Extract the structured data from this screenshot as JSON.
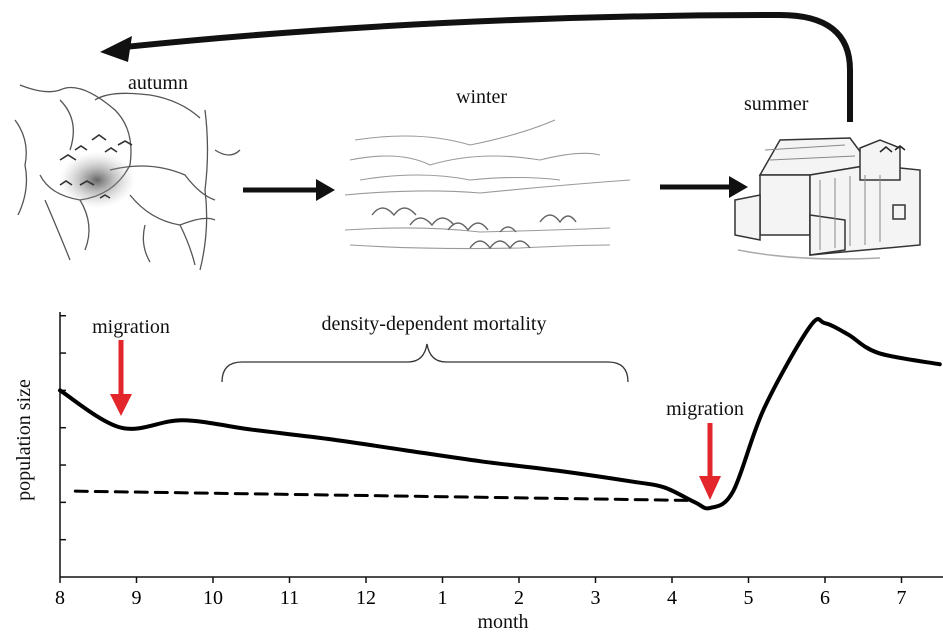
{
  "seasons": {
    "autumn": "autumn",
    "winter": "winter",
    "summer": "summer"
  },
  "annotations": {
    "migration_1": "migration",
    "migration_2": "migration",
    "density": "density-dependent mortality"
  },
  "chart_data": {
    "type": "line",
    "xlabel": "month",
    "ylabel": "population size",
    "x_ticks": [
      "8",
      "9",
      "10",
      "11",
      "12",
      "1",
      "2",
      "3",
      "4",
      "5",
      "6",
      "7"
    ],
    "series": [
      {
        "style": "solid",
        "x": [
          "8",
          "8.8",
          "9.6",
          "10.5",
          "11.5",
          "12.5",
          "1.5",
          "2.5",
          "3.5",
          "3.9",
          "4.3",
          "4.5",
          "4.8",
          "5.2",
          "5.8",
          "6.0",
          "6.3",
          "6.7",
          "7.5"
        ],
        "y": [
          5.0,
          4.0,
          4.2,
          3.95,
          3.7,
          3.4,
          3.1,
          2.85,
          2.55,
          2.4,
          2.0,
          1.85,
          2.3,
          4.5,
          6.7,
          6.8,
          6.5,
          6.0,
          5.7
        ]
      },
      {
        "style": "dashed",
        "x": [
          "8.2",
          "4.3"
        ],
        "y": [
          2.3,
          2.05
        ]
      }
    ],
    "ylim": [
      0,
      7.1
    ],
    "colors": {
      "line": "#000000",
      "arrow": "#e3262b"
    }
  }
}
